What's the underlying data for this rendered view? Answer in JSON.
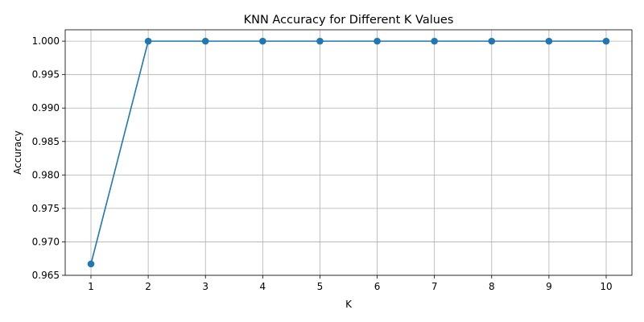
{
  "chart_data": {
    "type": "line",
    "title": "KNN Accuracy for Different K Values",
    "xlabel": "K",
    "ylabel": "Accuracy",
    "x": [
      1,
      2,
      3,
      4,
      5,
      6,
      7,
      8,
      9,
      10
    ],
    "series": [
      {
        "values": [
          0.9667,
          1.0,
          1.0,
          1.0,
          1.0,
          1.0,
          1.0,
          1.0,
          1.0,
          1.0
        ],
        "color": "#1f77b4",
        "marker": "circle"
      }
    ],
    "xticks": [
      "1",
      "2",
      "3",
      "4",
      "5",
      "6",
      "7",
      "8",
      "9",
      "10"
    ],
    "yticks": [
      "0.965",
      "0.970",
      "0.975",
      "0.980",
      "0.985",
      "0.990",
      "0.995",
      "1.000"
    ],
    "ytick_values": [
      0.965,
      0.97,
      0.975,
      0.98,
      0.985,
      0.99,
      0.995,
      1.0
    ],
    "xlim": [
      0.55,
      10.45
    ],
    "ylim": [
      0.965,
      1.0017
    ],
    "grid": true
  }
}
